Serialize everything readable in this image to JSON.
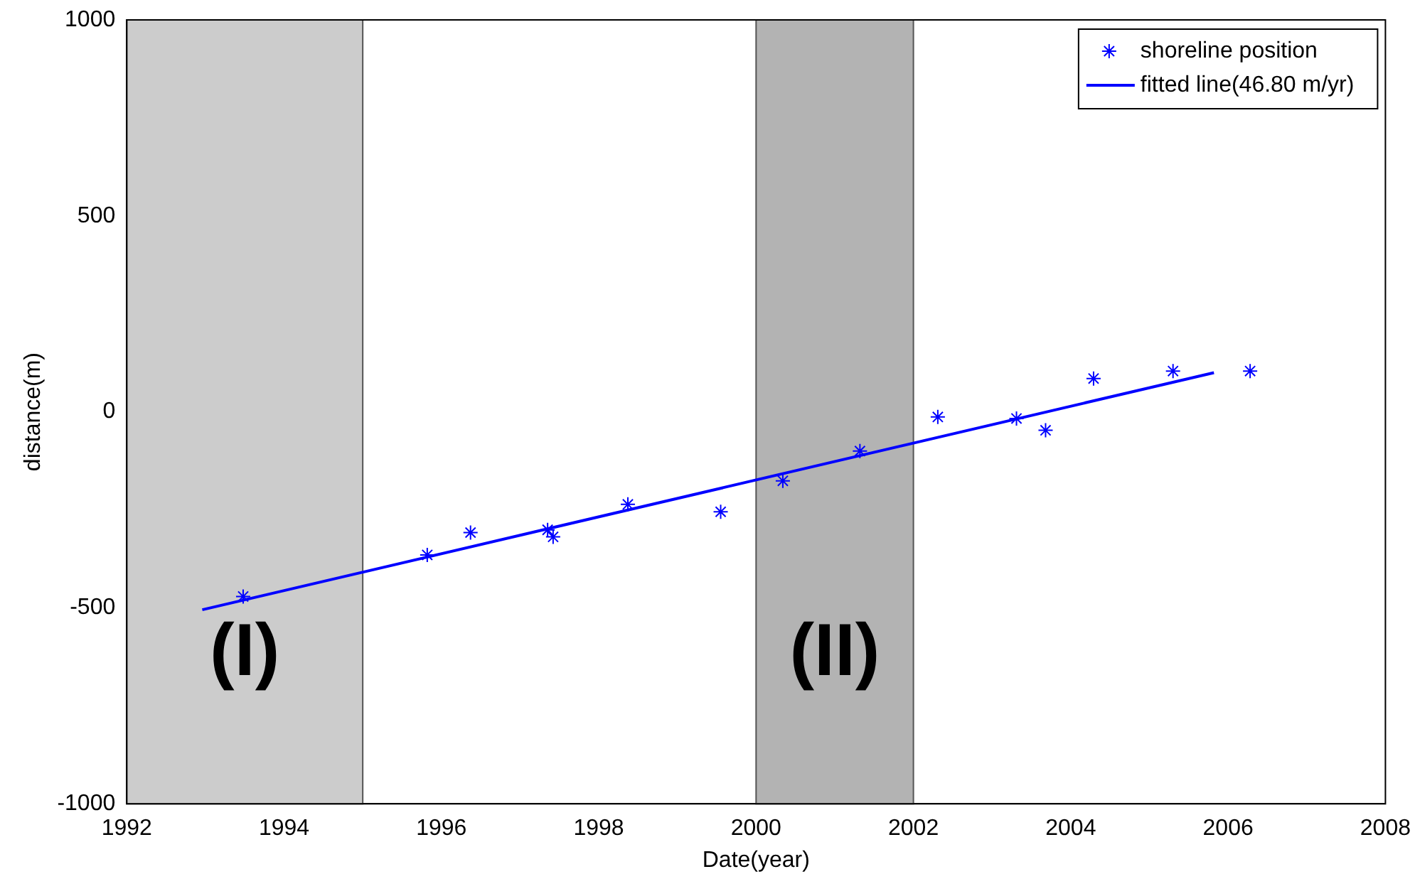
{
  "chart_data": {
    "type": "scatter",
    "xlabel": "Date(year)",
    "ylabel": "distance(m)",
    "xlim": [
      1992,
      2008
    ],
    "xticks": [
      1992,
      1994,
      1996,
      1998,
      2000,
      2002,
      2004,
      2006,
      2008
    ],
    "ylim": [
      -1000,
      1000
    ],
    "yticks": [
      -1000,
      -500,
      0,
      500,
      1000
    ],
    "grid": false,
    "legend": "top right",
    "series": [
      {
        "name": "shoreline position",
        "type": "scatter",
        "color": "#0000ff",
        "marker": "cross",
        "x": [
          1993.48,
          1995.82,
          1996.37,
          1997.35,
          1997.42,
          1998.37,
          1999.55,
          2000.34,
          2001.32,
          2002.31,
          2003.31,
          2003.68,
          2004.29,
          2005.3,
          2006.28
        ],
        "values": [
          -471,
          -365,
          -308,
          -301,
          -319,
          -236,
          -255,
          -176,
          -100,
          -13,
          -17,
          -47,
          85,
          104,
          104
        ]
      },
      {
        "name": "fitted line(46.80 m/yr)",
        "type": "line",
        "color": "#0000ff",
        "marker": "none",
        "line_style": "solid",
        "x": [
          1992.96,
          2005.82
        ],
        "values": [
          -505,
          100
        ]
      }
    ],
    "bands": [
      {
        "axis": "x",
        "from": 1992,
        "to": 1995,
        "label": "(I)",
        "color": "#cccccc"
      },
      {
        "axis": "x",
        "from": 2000,
        "to": 2002,
        "label": "(II)",
        "color": "#b3b3b3"
      }
    ]
  }
}
